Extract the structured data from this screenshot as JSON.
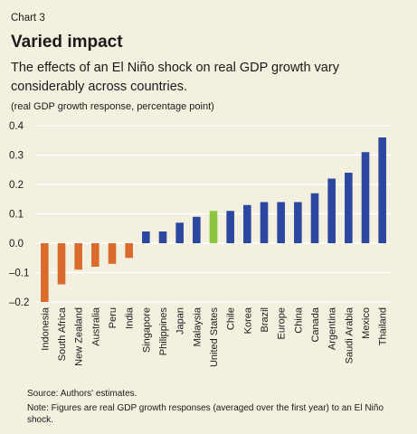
{
  "header": {
    "chart_label": "Chart 3",
    "title": "Varied impact",
    "subtitle": "The effects of an El Niño shock on real GDP growth vary considerably across countries.",
    "units": "(real GDP growth response, percentage point)"
  },
  "footer": {
    "source": "Source: Authors' estimates.",
    "note": "Note: Figures are real GDP growth responses (averaged over the first year) to an El Niño shock."
  },
  "colors": {
    "background": "#f3f0df",
    "grid": "#ffffff",
    "negative": "#d96c2c",
    "positive": "#2b47a0",
    "highlight": "#8cc63f"
  },
  "chart_data": {
    "type": "bar",
    "title": "Varied impact",
    "ylabel": "(real GDP growth response, percentage point)",
    "xlabel": "",
    "ylim": [
      -0.2,
      0.4
    ],
    "yticks": [
      "0.4",
      "0.3",
      "0.2",
      "0.1",
      "0.0",
      "–0.1",
      "–0.2"
    ],
    "ytick_values": [
      0.4,
      0.3,
      0.2,
      0.1,
      0.0,
      -0.1,
      -0.2
    ],
    "grid": true,
    "highlight_category": "United States",
    "categories": [
      "Indonesia",
      "South Africa",
      "New Zealand",
      "Australia",
      "Peru",
      "India",
      "Singapore",
      "Philippines",
      "Japan",
      "Malaysia",
      "United States",
      "Chile",
      "Korea",
      "Brazil",
      "Europe",
      "China",
      "Canada",
      "Argentina",
      "Saudi Arabia",
      "Mexico",
      "Thailand"
    ],
    "values": [
      -0.2,
      -0.14,
      -0.09,
      -0.08,
      -0.07,
      -0.05,
      0.04,
      0.04,
      0.07,
      0.09,
      0.11,
      0.11,
      0.13,
      0.14,
      0.14,
      0.14,
      0.17,
      0.22,
      0.24,
      0.31,
      0.36
    ]
  }
}
